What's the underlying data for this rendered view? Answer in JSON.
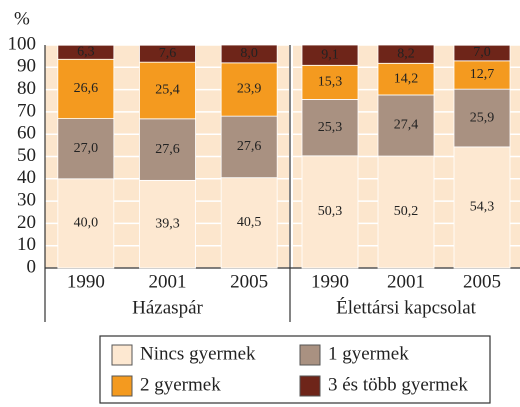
{
  "chart_data": {
    "type": "stacked_bar",
    "y_label": "%",
    "ylim": [
      0,
      100
    ],
    "yticks": [
      0,
      10,
      20,
      30,
      40,
      50,
      60,
      70,
      80,
      90,
      100
    ],
    "grid": true,
    "groups": [
      {
        "name": "Házaspár",
        "categories": [
          "1990",
          "2001",
          "2005"
        ]
      },
      {
        "name": "Élettársi kapcsolat",
        "categories": [
          "1990",
          "2001",
          "2005"
        ]
      }
    ],
    "series": [
      {
        "name": "Nincs gyermek",
        "color": "#fde8d1",
        "label_color": "#333333",
        "values": [
          40.0,
          39.3,
          40.5,
          50.3,
          50.2,
          54.3
        ],
        "value_labels": [
          "40,0",
          "39,3",
          "40,5",
          "50,3",
          "50,2",
          "54,3"
        ]
      },
      {
        "name": "1 gyermek",
        "color": "#a99181",
        "label_color": "#222222",
        "values": [
          27.0,
          27.6,
          27.6,
          25.3,
          27.4,
          25.9
        ],
        "value_labels": [
          "27,0",
          "27,6",
          "27,6",
          "25,3",
          "27,4",
          "25,9"
        ]
      },
      {
        "name": "2 gyermek",
        "color": "#f49a1f",
        "label_color": "#222222",
        "values": [
          26.6,
          25.4,
          23.9,
          15.3,
          14.2,
          12.7
        ],
        "value_labels": [
          "26,6",
          "25,4",
          "23,9",
          "15,3",
          "14,2",
          "12,7"
        ]
      },
      {
        "name": "3 és több gyermek",
        "color": "#6e2519",
        "label_color": "#ffffff",
        "values": [
          6.3,
          7.6,
          8.0,
          9.1,
          8.2,
          7.0
        ],
        "value_labels": [
          "6,3",
          "7,6",
          "8,0",
          "9,1",
          "8,2",
          "7,0"
        ]
      }
    ],
    "background": "#fce6cd"
  }
}
